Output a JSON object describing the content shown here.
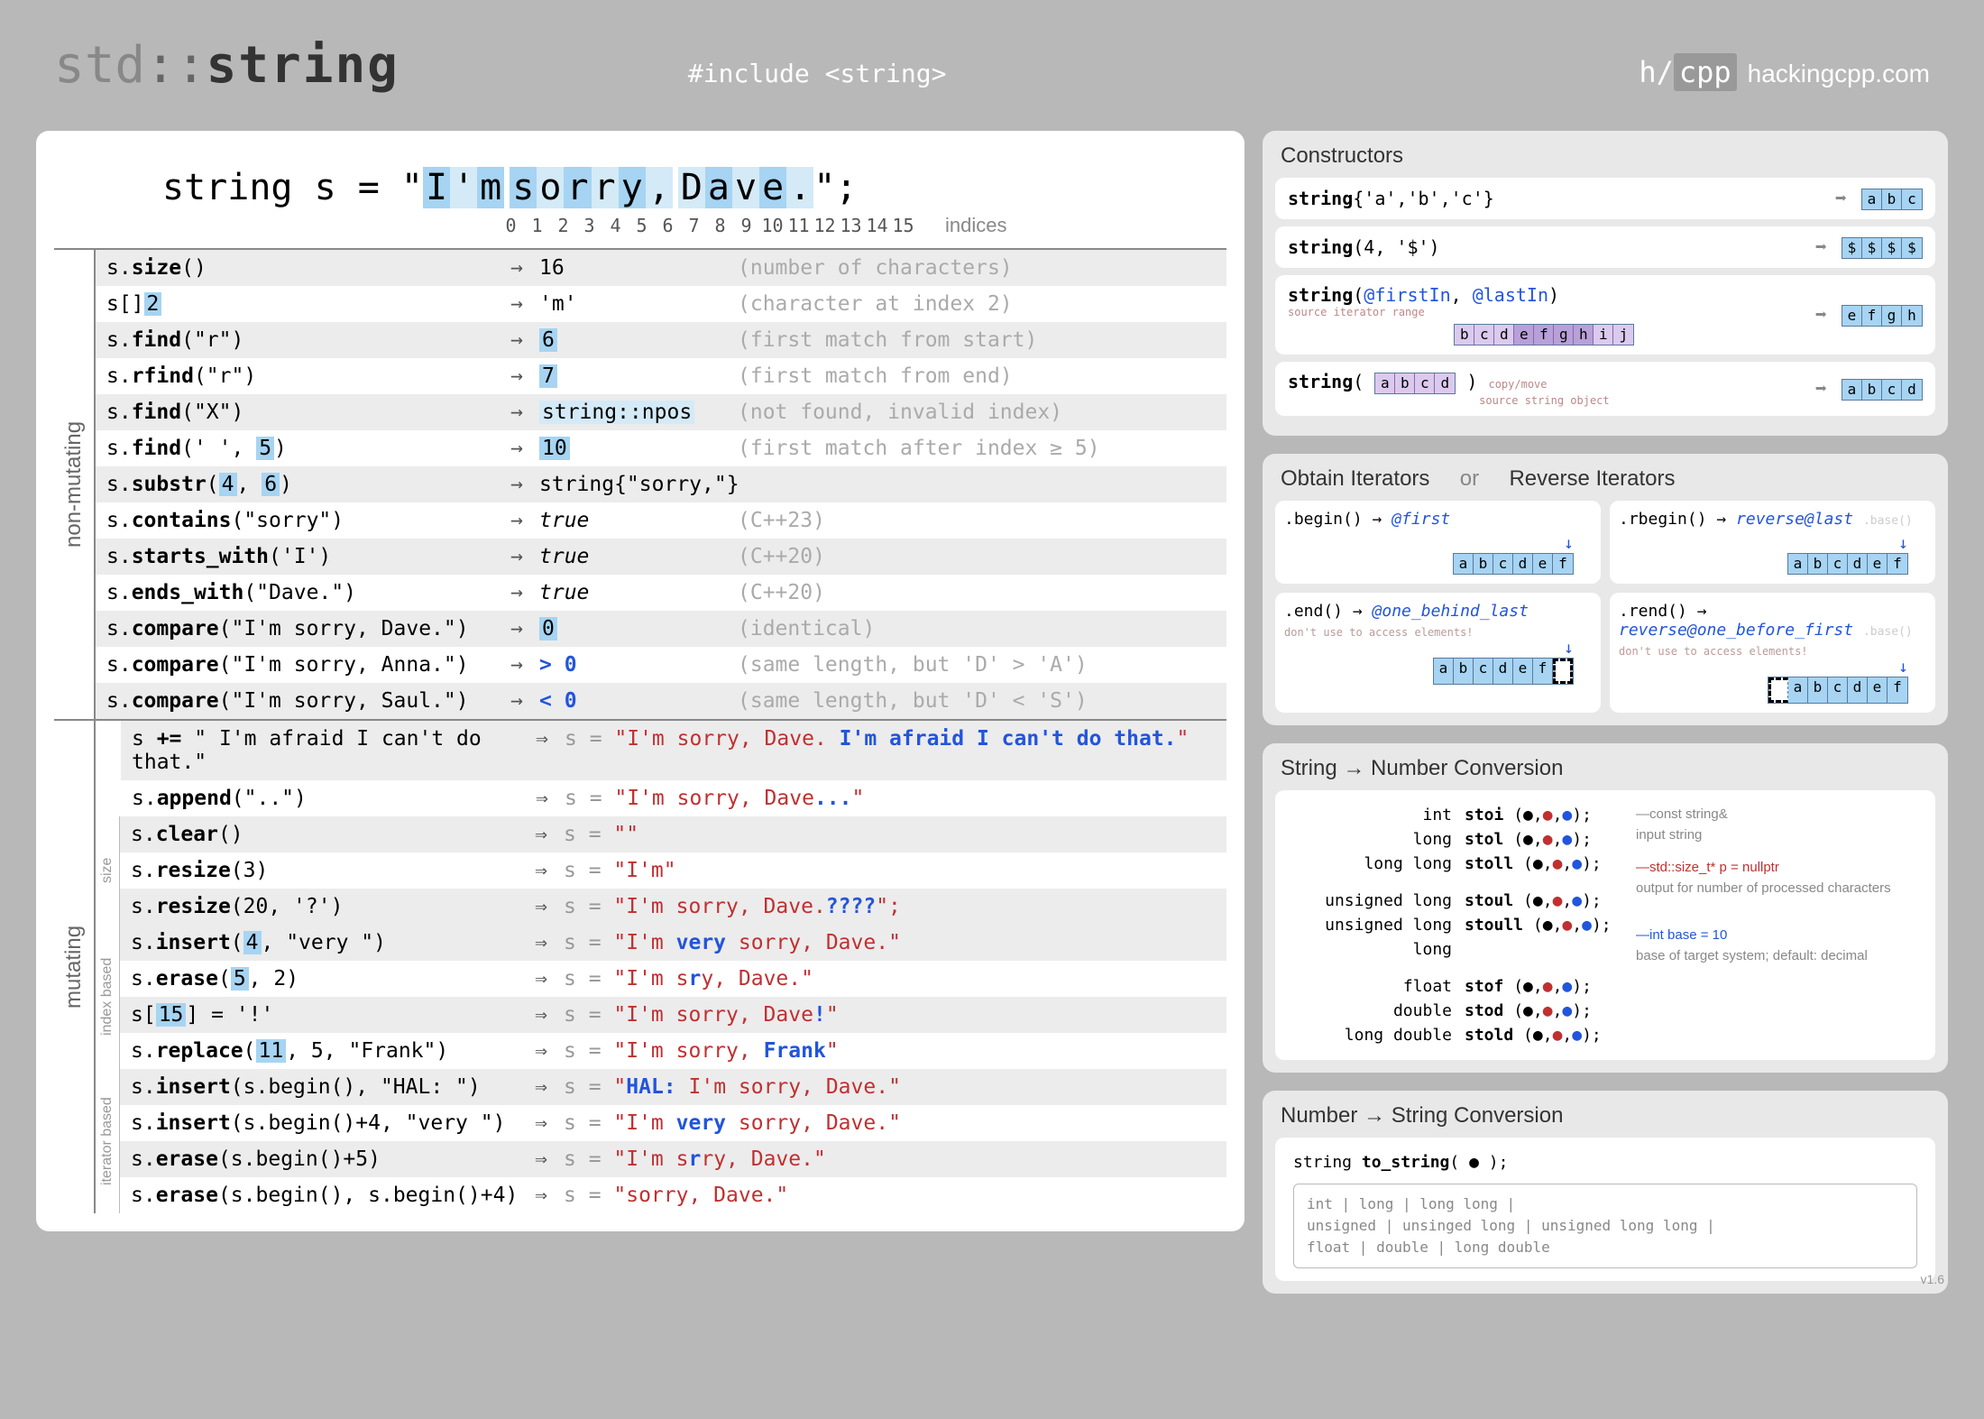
{
  "header": {
    "title_std": "std",
    "title_colon": "::",
    "title_string": "string",
    "include": "#include <string>",
    "brand_logo_h": "h/",
    "brand_logo_cpp": "cpp",
    "brand_url": "hackingcpp.com"
  },
  "declaration": {
    "prefix": "string s = \"",
    "chars": [
      "I",
      "'",
      "m",
      " ",
      "s",
      "o",
      "r",
      "r",
      "y",
      ",",
      " ",
      "D",
      "a",
      "v",
      "e",
      "."
    ],
    "hl_pattern": [
      1,
      0,
      1,
      0,
      1,
      0,
      1,
      0,
      1,
      0,
      1,
      0,
      1,
      0,
      1,
      0
    ],
    "suffix": "\";",
    "indices": [
      "0",
      "1",
      "2",
      "3",
      "4",
      "5",
      "6",
      "7",
      "8",
      "9",
      "10",
      "11",
      "12",
      "13",
      "14",
      "15"
    ],
    "indices_label": "indices"
  },
  "non_mutating_label": "non-mutating",
  "mutating_label": "mutating",
  "sub_labels": {
    "size": "size",
    "index": "index based",
    "iter": "iterator based"
  },
  "non_mutating": [
    {
      "code_pre": "s.",
      "fn": "size",
      "code_post": "()",
      "arrow": "→",
      "result": "16",
      "comment": "(number of characters)"
    },
    {
      "code_pre": "s[",
      "fn": "",
      "hl": "2",
      "code_post": "]",
      "arrow": "→",
      "result": "'m'",
      "comment": "(character at index 2)"
    },
    {
      "code_pre": "s.",
      "fn": "find",
      "code_post": "(\"r\")",
      "arrow": "→",
      "result_hl": "6",
      "comment": "(first match from start)"
    },
    {
      "code_pre": "s.",
      "fn": "rfind",
      "code_post": "(\"r\")",
      "arrow": "→",
      "result_hl": "7",
      "comment": "(first match from end)"
    },
    {
      "code_pre": "s.",
      "fn": "find",
      "code_post": "(\"X\")",
      "arrow": "→",
      "result_hlw": "string::npos",
      "comment": "(not found, invalid index)"
    },
    {
      "code_pre": "s.",
      "fn": "find",
      "code_post": "(' ', ",
      "hl": "5",
      "code_post2": ")",
      "arrow": "→",
      "result_hl": "10",
      "comment": "(first match after index ≥ 5)"
    },
    {
      "code_pre": "s.",
      "fn": "substr",
      "code_post": "(",
      "hl": "4",
      "mid": ", ",
      "hl2": "6",
      "code_post2": ")",
      "arrow": "→",
      "result": "string{\"sorry,\"}",
      "comment": ""
    },
    {
      "code_pre": "s.",
      "fn": "contains",
      "code_post": "(\"sorry\")",
      "arrow": "→",
      "result_ital": "true",
      "comment": "(C++23)"
    },
    {
      "code_pre": "s.",
      "fn": "starts_with",
      "code_post": "('I')",
      "arrow": "→",
      "result_ital": "true",
      "comment": "(C++20)"
    },
    {
      "code_pre": "s.",
      "fn": "ends_with",
      "code_post": "(\"Dave.\")",
      "arrow": "→",
      "result_ital": "true",
      "comment": "(C++20)"
    },
    {
      "code_pre": "s.",
      "fn": "compare",
      "code_post": "(\"I'm sorry, Dave.\")",
      "arrow": "→",
      "result_hl": "0",
      "comment": "(identical)"
    },
    {
      "code_pre": "s.",
      "fn": "compare",
      "code_post": "(\"I'm sorry, Anna.\")",
      "arrow": "→",
      "result_blue": "> 0",
      "comment": "(same length, but 'D' > 'A')"
    },
    {
      "code_pre": "s.",
      "fn": "compare",
      "code_post": "(\"I'm sorry, Saul.\")",
      "arrow": "→",
      "result_blue": "< 0",
      "comment": "(same length, but 'D' < 'S')"
    }
  ],
  "mutating_groups": [
    {
      "sub": "",
      "rows": [
        {
          "code_html": "s <b>+=</b> \" I'm afraid I can't do that.\"",
          "arrow": "⇒",
          "res_pre": "s = ",
          "res_q": "\"I'm sorry, Dave. ",
          "res_v": "I'm afraid I can't do that.",
          "res_end": "\""
        },
        {
          "code_html": "s.<b>append</b>(\"..\")",
          "arrow": "⇒",
          "res_pre": "s = ",
          "res_q": "\"I'm sorry, Dave",
          "res_v": "...",
          "res_end": "\""
        }
      ]
    },
    {
      "sub": "size",
      "rows": [
        {
          "code_html": "s.<b>clear</b>()",
          "arrow": "⇒",
          "res_pre": "s = ",
          "res_q": "\"\"",
          "res_v": "",
          "res_end": ""
        },
        {
          "code_html": "s.<b>resize</b>(3)",
          "arrow": "⇒",
          "res_pre": "s = ",
          "res_q": "\"I'm\"",
          "res_v": "",
          "res_end": ""
        },
        {
          "code_html": "s.<b>resize</b>(20, '?')",
          "arrow": "⇒",
          "res_pre": "s = ",
          "res_q": "\"I'm sorry, Dave.",
          "res_v": "????",
          "res_end": "\";"
        }
      ]
    },
    {
      "sub": "index",
      "rows": [
        {
          "code_html": "s.<b>insert</b>(<span class='hl-blue'>4</span>, \"very \")",
          "arrow": "⇒",
          "res_pre": "s = ",
          "res_q": "\"I'm ",
          "res_v": "very ",
          "res_mid": "sorry, Dave.",
          "res_end": "\""
        },
        {
          "code_html": "s.<b>erase</b>(<span class='hl-blue'>5</span>, 2)",
          "arrow": "⇒",
          "res_pre": "s = ",
          "res_q": "\"I'm s",
          "res_v": "r",
          "res_mid": "y, Dave.",
          "res_end": "\""
        },
        {
          "code_html": "s[<span class='hl-blue'>15</span>] = '!'",
          "arrow": "⇒",
          "res_pre": "s = ",
          "res_q": "\"I'm sorry, Dave",
          "res_v": "!",
          "res_end": "\""
        },
        {
          "code_html": "s.<b>replace</b>(<span class='hl-blue'>11</span>, 5, \"Frank\")",
          "arrow": "⇒",
          "res_pre": "s = ",
          "res_q": "\"I'm sorry, ",
          "res_v": "Frank",
          "res_end": "\""
        }
      ]
    },
    {
      "sub": "iter",
      "rows": [
        {
          "code_html": "s.<b>insert</b>(s.begin(), \"HAL: \")",
          "arrow": "⇒",
          "res_pre": "s = ",
          "res_q": "\"",
          "res_v": "HAL: ",
          "res_mid": "I'm sorry, Dave.",
          "res_end": "\""
        },
        {
          "code_html": "s.<b>insert</b>(s.begin()+4, \"very \")",
          "arrow": "⇒",
          "res_pre": "s = ",
          "res_q": "\"I'm ",
          "res_v": "very ",
          "res_mid": "sorry, Dave.",
          "res_end": "\""
        },
        {
          "code_html": "s.<b>erase</b>(s.begin()+5)",
          "arrow": "⇒",
          "res_pre": "s = ",
          "res_q": "\"I'm s",
          "res_v": "r",
          "res_mid": "ry, Dave.",
          "res_end": "\""
        },
        {
          "code_html": "s.<b>erase</b>(s.begin(), s.begin()+4)",
          "arrow": "⇒",
          "res_pre": "s = ",
          "res_q": "\"sorry, Dave.",
          "res_v": "",
          "res_end": "\""
        }
      ]
    }
  ],
  "constructors": {
    "title": "Constructors",
    "rows": [
      {
        "lhs_html": "<b>string</b>{'a','b','c'}",
        "cells": [
          "a",
          "b",
          "c"
        ]
      },
      {
        "lhs_html": "<b>string</b>(4, '$')",
        "cells": [
          "$",
          "$",
          "$",
          "$"
        ]
      },
      {
        "lhs_html": "<b>string</b>(<span class='at'>@firstIn</span>, <span class='at'>@lastIn</span>)",
        "cells": [
          "e",
          "f",
          "g",
          "h"
        ],
        "note": "source iterator range",
        "src_cells": [
          "b",
          "c",
          "d",
          "e",
          "f",
          "g",
          "h",
          "i",
          "j"
        ],
        "src_hl": [
          0,
          0,
          0,
          1,
          1,
          1,
          1,
          0,
          0
        ]
      },
      {
        "lhs_html": "<b>string</b>( <span class='cells purple'><span>a</span><span>b</span><span>c</span><span>d</span></span> ) <span class='small-note'>copy/move</span>",
        "cells": [
          "a",
          "b",
          "c",
          "d"
        ],
        "note2": "source string object"
      }
    ]
  },
  "iterators": {
    "title1": "Obtain Iterators",
    "or": "or",
    "title2": "Reverse Iterators",
    "items": [
      {
        "call": ".begin() → ",
        "val": "@first",
        "cells": [
          "a",
          "b",
          "c",
          "d",
          "e",
          "f"
        ],
        "arrow_pos": "left"
      },
      {
        "call": ".rbegin() → ",
        "val": "reverse@last",
        "extra": ".base()",
        "cells": [
          "a",
          "b",
          "c",
          "d",
          "e",
          "f"
        ],
        "arrow_pos": "right"
      },
      {
        "call": ".end() → ",
        "val": "@one_behind_last",
        "note": "don't use to access elements!",
        "cells": [
          "a",
          "b",
          "c",
          "d",
          "e",
          "f"
        ],
        "ghost": true,
        "arrow_pos": "after"
      },
      {
        "call": ".rend() → ",
        "val": "reverse@one_before_first",
        "extra": ".base()",
        "note": "don't use to access elements!",
        "cells": [
          "a",
          "b",
          "c",
          "d",
          "e",
          "f"
        ],
        "ghost_before": true,
        "arrow_pos": "before"
      }
    ]
  },
  "str_to_num": {
    "title": "String → Number  Conversion",
    "rows": [
      {
        "type": "int",
        "fn": "stoi"
      },
      {
        "type": "long",
        "fn": "stol"
      },
      {
        "type": "long long",
        "fn": "stoll"
      },
      {
        "type": "unsigned long",
        "fn": "stoul"
      },
      {
        "type": "unsigned long long",
        "fn": "stoull"
      },
      {
        "type": "float",
        "fn": "stof"
      },
      {
        "type": "double",
        "fn": "stod"
      },
      {
        "type": "long double",
        "fn": "stold"
      }
    ],
    "note1": "const string&",
    "note1b": "input string",
    "note2": "std::size_t* p = nullptr",
    "note2b": "output for number of processed characters",
    "note3": "int base = 10",
    "note3b": "base of target system; default: decimal"
  },
  "num_to_str": {
    "title": "Number → String  Conversion",
    "sig": "string <b>to_string</b>( ● );",
    "types": "int | long | long long |\nunsigned | unsinged long | unsigned long long |\nfloat | double | long double"
  },
  "version": "v1.6"
}
